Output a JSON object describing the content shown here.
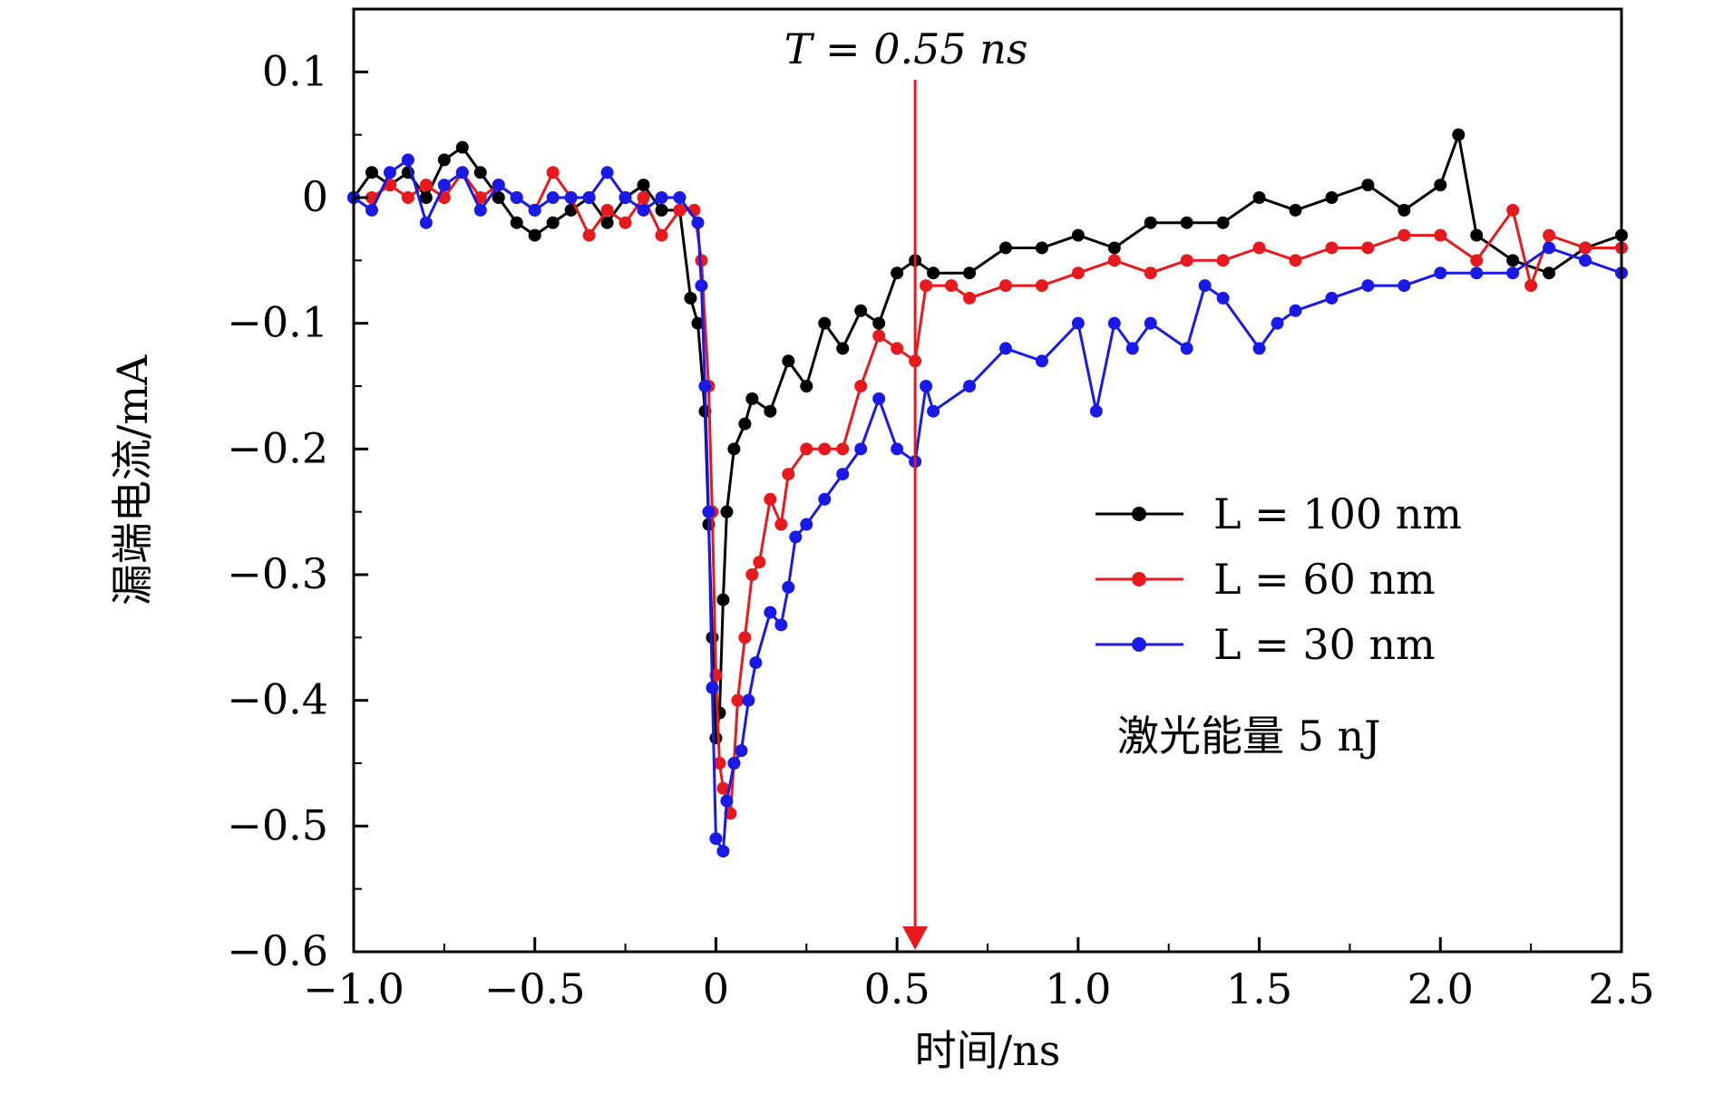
{
  "chart_data": {
    "type": "line",
    "xlabel": "时间/ns",
    "ylabel": "漏端电流/mA",
    "xlim": [
      -1.0,
      2.5
    ],
    "ylim": [
      -0.6,
      0.15
    ],
    "x_ticks": [
      -1.0,
      -0.5,
      0,
      0.5,
      1.0,
      1.5,
      2.0,
      2.5
    ],
    "x_tick_labels": [
      "−1.0",
      "−0.5",
      "0",
      "0.5",
      "1.0",
      "1.5",
      "2.0",
      "2.5"
    ],
    "y_ticks": [
      0.1,
      0,
      -0.1,
      -0.2,
      -0.3,
      -0.4,
      -0.5,
      -0.6
    ],
    "y_tick_labels": [
      "0.1",
      "0",
      "−0.1",
      "−0.2",
      "−0.3",
      "−0.4",
      "−0.5",
      "−0.6"
    ],
    "grid": false,
    "legend_position": "right",
    "annotation": {
      "label": "T = 0.55 ns",
      "x": 0.55,
      "color": "#e8191c"
    },
    "note": "激光能量 5 nJ",
    "series": [
      {
        "name": "L = 100 nm",
        "color": "#000000",
        "points": [
          [
            -1.0,
            0.0
          ],
          [
            -0.95,
            0.02
          ],
          [
            -0.9,
            0.01
          ],
          [
            -0.85,
            0.02
          ],
          [
            -0.8,
            0.0
          ],
          [
            -0.75,
            0.03
          ],
          [
            -0.7,
            0.04
          ],
          [
            -0.65,
            0.02
          ],
          [
            -0.6,
            0.0
          ],
          [
            -0.55,
            -0.02
          ],
          [
            -0.5,
            -0.03
          ],
          [
            -0.45,
            -0.02
          ],
          [
            -0.4,
            -0.01
          ],
          [
            -0.35,
            0.0
          ],
          [
            -0.3,
            -0.02
          ],
          [
            -0.25,
            0.0
          ],
          [
            -0.2,
            0.01
          ],
          [
            -0.15,
            -0.01
          ],
          [
            -0.1,
            -0.01
          ],
          [
            -0.07,
            -0.08
          ],
          [
            -0.05,
            -0.1
          ],
          [
            -0.03,
            -0.17
          ],
          [
            -0.02,
            -0.26
          ],
          [
            -0.01,
            -0.35
          ],
          [
            0.0,
            -0.43
          ],
          [
            0.01,
            -0.41
          ],
          [
            0.02,
            -0.32
          ],
          [
            0.03,
            -0.25
          ],
          [
            0.05,
            -0.2
          ],
          [
            0.08,
            -0.18
          ],
          [
            0.1,
            -0.16
          ],
          [
            0.15,
            -0.17
          ],
          [
            0.2,
            -0.13
          ],
          [
            0.25,
            -0.15
          ],
          [
            0.3,
            -0.1
          ],
          [
            0.35,
            -0.12
          ],
          [
            0.4,
            -0.09
          ],
          [
            0.45,
            -0.1
          ],
          [
            0.5,
            -0.06
          ],
          [
            0.55,
            -0.05
          ],
          [
            0.6,
            -0.06
          ],
          [
            0.7,
            -0.06
          ],
          [
            0.8,
            -0.04
          ],
          [
            0.9,
            -0.04
          ],
          [
            1.0,
            -0.03
          ],
          [
            1.1,
            -0.04
          ],
          [
            1.2,
            -0.02
          ],
          [
            1.3,
            -0.02
          ],
          [
            1.4,
            -0.02
          ],
          [
            1.5,
            0.0
          ],
          [
            1.6,
            -0.01
          ],
          [
            1.7,
            0.0
          ],
          [
            1.8,
            0.01
          ],
          [
            1.9,
            -0.01
          ],
          [
            2.0,
            0.01
          ],
          [
            2.05,
            0.05
          ],
          [
            2.1,
            -0.03
          ],
          [
            2.2,
            -0.05
          ],
          [
            2.3,
            -0.06
          ],
          [
            2.4,
            -0.04
          ],
          [
            2.5,
            -0.03
          ]
        ]
      },
      {
        "name": "L = 60 nm",
        "color": "#e8191c",
        "points": [
          [
            -1.0,
            0.0
          ],
          [
            -0.95,
            0.0
          ],
          [
            -0.9,
            0.01
          ],
          [
            -0.85,
            0.0
          ],
          [
            -0.8,
            0.01
          ],
          [
            -0.75,
            0.0
          ],
          [
            -0.7,
            0.02
          ],
          [
            -0.65,
            0.0
          ],
          [
            -0.6,
            0.01
          ],
          [
            -0.55,
            0.0
          ],
          [
            -0.5,
            -0.01
          ],
          [
            -0.45,
            0.02
          ],
          [
            -0.4,
            0.0
          ],
          [
            -0.35,
            -0.03
          ],
          [
            -0.3,
            -0.01
          ],
          [
            -0.25,
            -0.02
          ],
          [
            -0.2,
            0.0
          ],
          [
            -0.15,
            -0.03
          ],
          [
            -0.1,
            -0.01
          ],
          [
            -0.06,
            -0.01
          ],
          [
            -0.04,
            -0.05
          ],
          [
            -0.02,
            -0.15
          ],
          [
            -0.01,
            -0.25
          ],
          [
            0.0,
            -0.38
          ],
          [
            0.01,
            -0.45
          ],
          [
            0.02,
            -0.47
          ],
          [
            0.04,
            -0.49
          ],
          [
            0.05,
            -0.45
          ],
          [
            0.06,
            -0.4
          ],
          [
            0.08,
            -0.35
          ],
          [
            0.1,
            -0.3
          ],
          [
            0.12,
            -0.29
          ],
          [
            0.15,
            -0.24
          ],
          [
            0.18,
            -0.26
          ],
          [
            0.2,
            -0.22
          ],
          [
            0.25,
            -0.2
          ],
          [
            0.3,
            -0.2
          ],
          [
            0.35,
            -0.2
          ],
          [
            0.4,
            -0.15
          ],
          [
            0.45,
            -0.11
          ],
          [
            0.5,
            -0.12
          ],
          [
            0.55,
            -0.13
          ],
          [
            0.58,
            -0.07
          ],
          [
            0.65,
            -0.07
          ],
          [
            0.7,
            -0.08
          ],
          [
            0.8,
            -0.07
          ],
          [
            0.9,
            -0.07
          ],
          [
            1.0,
            -0.06
          ],
          [
            1.1,
            -0.05
          ],
          [
            1.2,
            -0.06
          ],
          [
            1.3,
            -0.05
          ],
          [
            1.4,
            -0.05
          ],
          [
            1.5,
            -0.04
          ],
          [
            1.6,
            -0.05
          ],
          [
            1.7,
            -0.04
          ],
          [
            1.8,
            -0.04
          ],
          [
            1.9,
            -0.03
          ],
          [
            2.0,
            -0.03
          ],
          [
            2.1,
            -0.05
          ],
          [
            2.2,
            -0.01
          ],
          [
            2.25,
            -0.07
          ],
          [
            2.3,
            -0.03
          ],
          [
            2.4,
            -0.04
          ],
          [
            2.5,
            -0.04
          ]
        ]
      },
      {
        "name": "L = 30 nm",
        "color": "#1919e8",
        "points": [
          [
            -1.0,
            0.0
          ],
          [
            -0.95,
            -0.01
          ],
          [
            -0.9,
            0.02
          ],
          [
            -0.85,
            0.03
          ],
          [
            -0.8,
            -0.02
          ],
          [
            -0.75,
            0.01
          ],
          [
            -0.7,
            0.02
          ],
          [
            -0.65,
            -0.01
          ],
          [
            -0.6,
            0.01
          ],
          [
            -0.55,
            0.0
          ],
          [
            -0.5,
            -0.01
          ],
          [
            -0.45,
            0.0
          ],
          [
            -0.4,
            0.0
          ],
          [
            -0.35,
            0.0
          ],
          [
            -0.3,
            0.02
          ],
          [
            -0.25,
            0.0
          ],
          [
            -0.2,
            -0.01
          ],
          [
            -0.15,
            0.0
          ],
          [
            -0.1,
            0.0
          ],
          [
            -0.05,
            -0.02
          ],
          [
            -0.04,
            -0.07
          ],
          [
            -0.03,
            -0.15
          ],
          [
            -0.02,
            -0.25
          ],
          [
            -0.01,
            -0.39
          ],
          [
            0.0,
            -0.51
          ],
          [
            0.02,
            -0.52
          ],
          [
            0.03,
            -0.48
          ],
          [
            0.05,
            -0.45
          ],
          [
            0.07,
            -0.44
          ],
          [
            0.09,
            -0.4
          ],
          [
            0.11,
            -0.37
          ],
          [
            0.15,
            -0.33
          ],
          [
            0.18,
            -0.34
          ],
          [
            0.2,
            -0.31
          ],
          [
            0.22,
            -0.27
          ],
          [
            0.25,
            -0.26
          ],
          [
            0.3,
            -0.24
          ],
          [
            0.35,
            -0.22
          ],
          [
            0.4,
            -0.2
          ],
          [
            0.45,
            -0.16
          ],
          [
            0.5,
            -0.2
          ],
          [
            0.55,
            -0.21
          ],
          [
            0.58,
            -0.15
          ],
          [
            0.6,
            -0.17
          ],
          [
            0.7,
            -0.15
          ],
          [
            0.8,
            -0.12
          ],
          [
            0.9,
            -0.13
          ],
          [
            1.0,
            -0.1
          ],
          [
            1.05,
            -0.17
          ],
          [
            1.1,
            -0.1
          ],
          [
            1.15,
            -0.12
          ],
          [
            1.2,
            -0.1
          ],
          [
            1.3,
            -0.12
          ],
          [
            1.35,
            -0.07
          ],
          [
            1.4,
            -0.08
          ],
          [
            1.5,
            -0.12
          ],
          [
            1.55,
            -0.1
          ],
          [
            1.6,
            -0.09
          ],
          [
            1.7,
            -0.08
          ],
          [
            1.8,
            -0.07
          ],
          [
            1.9,
            -0.07
          ],
          [
            2.0,
            -0.06
          ],
          [
            2.1,
            -0.06
          ],
          [
            2.2,
            -0.06
          ],
          [
            2.3,
            -0.04
          ],
          [
            2.4,
            -0.05
          ],
          [
            2.5,
            -0.06
          ]
        ]
      }
    ]
  }
}
